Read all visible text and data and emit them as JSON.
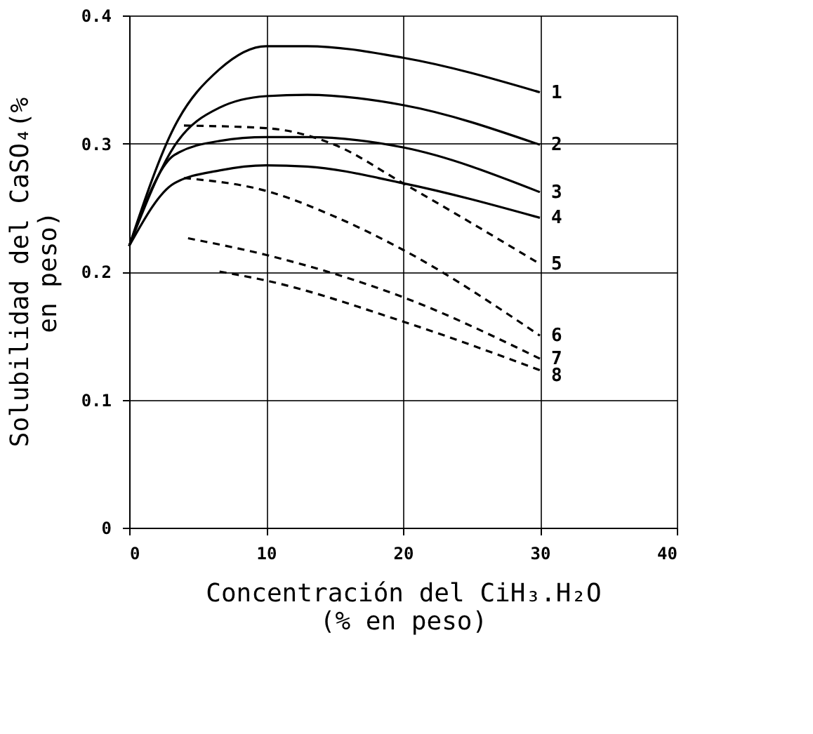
{
  "chart_data": {
    "type": "line",
    "xlabel": "Concentración del CiH₃.H₂O\n(% en peso)",
    "ylabel": "Solubilidad del CaSO₄(%\nen peso)",
    "xlim": [
      0,
      40
    ],
    "ylim": [
      0,
      0.4
    ],
    "xticks": [
      0,
      10,
      20,
      30,
      40
    ],
    "yticks": [
      0,
      0.1,
      0.2,
      0.3,
      0.4
    ],
    "grid": true,
    "marker": "none",
    "series": [
      {
        "name": "1",
        "color": "#000000",
        "line_style": "solid",
        "x": [
          0,
          3.3,
          6.6,
          10,
          13,
          20,
          30
        ],
        "values": [
          0.22,
          0.313,
          0.358,
          0.376,
          0.376,
          0.367,
          0.34
        ]
      },
      {
        "name": "2",
        "color": "#000000",
        "line_style": "solid",
        "x": [
          0,
          3.3,
          6.6,
          10,
          13,
          20,
          30
        ],
        "values": [
          0.22,
          0.298,
          0.328,
          0.337,
          0.338,
          0.33,
          0.299
        ]
      },
      {
        "name": "3",
        "color": "#000000",
        "line_style": "solid",
        "x": [
          0,
          3.3,
          6.6,
          10,
          13,
          20,
          30
        ],
        "values": [
          0.22,
          0.291,
          0.302,
          0.305,
          0.305,
          0.297,
          0.262
        ]
      },
      {
        "name": "4",
        "color": "#000000",
        "line_style": "solid",
        "x": [
          0,
          3.3,
          6.6,
          10,
          13,
          20,
          30
        ],
        "values": [
          0.22,
          0.269,
          0.279,
          0.283,
          0.282,
          0.269,
          0.242
        ]
      },
      {
        "name": "5",
        "color": "#000000",
        "line_style": "dashed",
        "x": [
          4,
          10,
          15,
          20,
          30
        ],
        "values": [
          0.314,
          0.312,
          0.299,
          0.269,
          0.206
        ]
      },
      {
        "name": "6",
        "color": "#000000",
        "line_style": "dashed",
        "x": [
          4,
          10,
          15,
          20,
          30
        ],
        "values": [
          0.273,
          0.263,
          0.243,
          0.217,
          0.15
        ]
      },
      {
        "name": "7",
        "color": "#000000",
        "line_style": "dashed",
        "x": [
          4.3,
          10,
          20,
          30
        ],
        "values": [
          0.226,
          0.213,
          0.18,
          0.132
        ]
      },
      {
        "name": "8",
        "color": "#000000",
        "line_style": "dashed",
        "x": [
          6.6,
          10,
          20,
          30
        ],
        "values": [
          0.2,
          0.193,
          0.161,
          0.123
        ]
      }
    ]
  }
}
